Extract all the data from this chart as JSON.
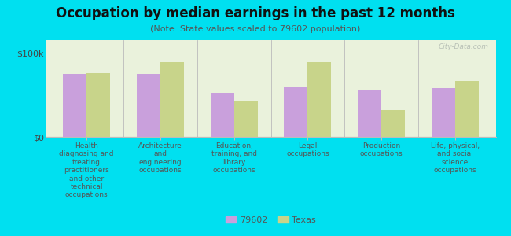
{
  "title": "Occupation by median earnings in the past 12 months",
  "subtitle": "(Note: State values scaled to 79602 population)",
  "categories": [
    "Health\ndiagnosing and\ntreating\npractitioners\nand other\ntechnical\noccupations",
    "Architecture\nand\nengineering\noccupations",
    "Education,\ntraining, and\nlibrary\noccupations",
    "Legal\noccupations",
    "Production\noccupations",
    "Life, physical,\nand social\nscience\noccupations"
  ],
  "values_79602": [
    75000,
    75000,
    52000,
    60000,
    55000,
    58000
  ],
  "values_texas": [
    76000,
    89000,
    42000,
    89000,
    32000,
    66000
  ],
  "color_79602": "#c9a0dc",
  "color_texas": "#c8d48a",
  "background_outer": "#00e0f0",
  "background_plot": "#eaf2dc",
  "ylim": [
    0,
    115000
  ],
  "ytick_labels": [
    "$0",
    "$100k"
  ],
  "legend_label_79602": "79602",
  "legend_label_texas": "Texas",
  "watermark": "City-Data.com",
  "title_fontsize": 12,
  "subtitle_fontsize": 8,
  "tick_fontsize": 8,
  "cat_fontsize": 6.5,
  "legend_fontsize": 8
}
